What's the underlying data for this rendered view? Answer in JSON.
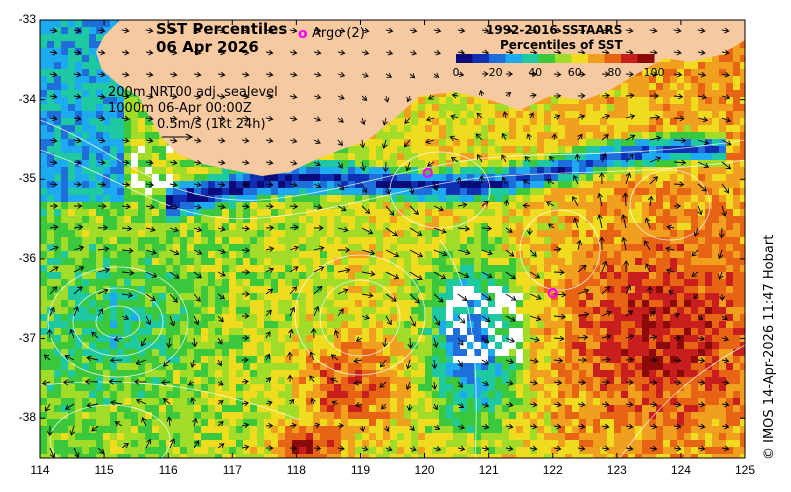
{
  "title": "SST Percentiles",
  "date": "06 Apr 2026",
  "legend": {
    "marker": "o",
    "label": "Argo (2)"
  },
  "colorbar": {
    "title_line1": "1992-2016 SSTAARS",
    "title_line2": "Percentiles of SST",
    "ticks": [
      "0",
      "20",
      "40",
      "60",
      "80",
      "100"
    ],
    "colors": [
      "#0a0a7a",
      "#1030b4",
      "#1e6edc",
      "#1eaaf0",
      "#1ec8a0",
      "#3cc83c",
      "#a0dc28",
      "#f0dc1e",
      "#f0a01e",
      "#e66414",
      "#c81e1e",
      "#8c0a0a"
    ]
  },
  "notes": {
    "line1": "200m  NRT00 adj. sealevel",
    "line2": "1000m 06-Apr 00:00Z",
    "line3": "0.5m/s (1kt 24h)"
  },
  "credit": "© IMOS 14-Apr-2026 11:47 Hobart",
  "axes": {
    "x_ticks": [
      "114",
      "115",
      "116",
      "117",
      "118",
      "119",
      "120",
      "121",
      "122",
      "123",
      "124",
      "125"
    ],
    "y_ticks": [
      "-33",
      "-34",
      "-35",
      "-36",
      "-37",
      "-38"
    ],
    "xlim": [
      114,
      125
    ],
    "ylim": [
      -38.5,
      -33
    ]
  },
  "argo_floats": [
    {
      "lon": 120.05,
      "lat": -34.92
    },
    {
      "lon": 122.0,
      "lat": -36.43
    }
  ],
  "colors": {
    "land": "#f7c9a0",
    "marker": "#ff00ff",
    "contour": "#ffffff"
  }
}
